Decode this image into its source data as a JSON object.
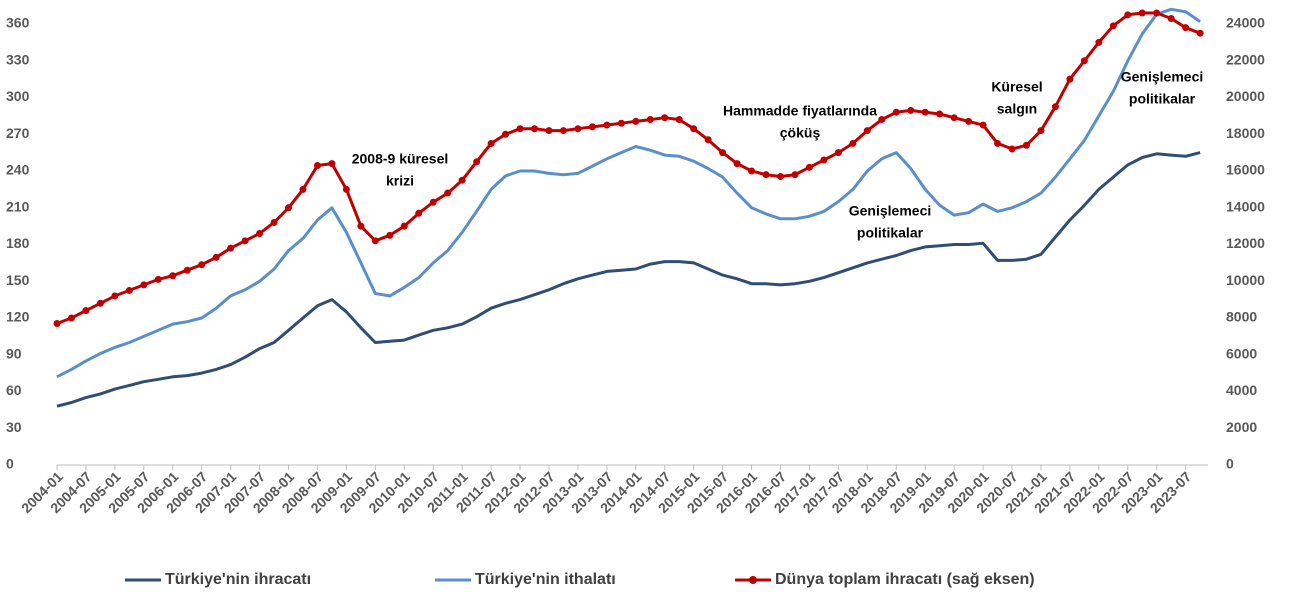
{
  "chart_data": {
    "type": "line",
    "categories": [
      "2004-01",
      null,
      "2004-07",
      null,
      "2005-01",
      null,
      "2005-07",
      null,
      "2006-01",
      null,
      "2006-07",
      null,
      "2007-01",
      null,
      "2007-07",
      null,
      "2008-01",
      null,
      "2008-07",
      null,
      "2009-01",
      null,
      "2009-07",
      null,
      "2010-01",
      null,
      "2010-07",
      null,
      "2011-01",
      null,
      "2011-07",
      null,
      "2012-01",
      null,
      "2012-07",
      null,
      "2013-01",
      null,
      "2013-07",
      null,
      "2014-01",
      null,
      "2014-07",
      null,
      "2015-01",
      null,
      "2015-07",
      null,
      "2016-01",
      null,
      "2016-07",
      null,
      "2017-01",
      null,
      "2017-07",
      null,
      "2018-01",
      null,
      "2018-07",
      null,
      "2019-01",
      null,
      "2019-07",
      null,
      "2020-01",
      null,
      "2020-07",
      null,
      "2021-01",
      null,
      "2021-07",
      null,
      "2022-01",
      null,
      "2022-07",
      null,
      "2023-01",
      null,
      "2023-07",
      null
    ],
    "series": [
      {
        "name": "Türkiye'nin ihracatı",
        "color": "#2e4e73",
        "values": [
          48,
          51,
          55,
          58,
          62,
          65,
          68,
          70,
          72,
          73,
          75,
          78,
          82,
          88,
          95,
          100,
          110,
          120,
          130,
          135,
          125,
          112,
          100,
          101,
          102,
          106,
          110,
          112,
          115,
          121,
          128,
          132,
          135,
          139,
          143,
          148,
          152,
          155,
          158,
          159,
          160,
          164,
          166,
          166,
          165,
          160,
          155,
          152,
          148,
          148,
          147,
          148,
          150,
          153,
          157,
          161,
          165,
          168,
          171,
          175,
          178,
          179,
          180,
          180,
          181,
          167,
          167,
          168,
          172,
          186,
          200,
          212,
          225,
          235,
          245,
          251,
          254,
          253,
          252,
          255
        ]
      },
      {
        "name": "Türkiye'nin ithalatı",
        "color": "#5b8fcc",
        "values": [
          72,
          78,
          85,
          91,
          96,
          100,
          105,
          110,
          115,
          117,
          120,
          128,
          138,
          143,
          150,
          160,
          175,
          185,
          200,
          210,
          190,
          165,
          140,
          138,
          145,
          153,
          165,
          175,
          190,
          207,
          225,
          236,
          240,
          240,
          238,
          237,
          238,
          244,
          250,
          255,
          260,
          257,
          253,
          252,
          248,
          242,
          235,
          222,
          210,
          205,
          201,
          201,
          203,
          207,
          215,
          225,
          240,
          250,
          255,
          242,
          225,
          212,
          204,
          206,
          213,
          207,
          210,
          215,
          222,
          235,
          250,
          265,
          285,
          305,
          330,
          352,
          368,
          372,
          370,
          362
        ]
      },
      {
        "name": "Dünya toplam ihracatı (sağ eksen)",
        "color": "#c00000",
        "axis": "y2",
        "marker": true,
        "values": [
          7700,
          8000,
          8400,
          8800,
          9200,
          9500,
          9800,
          10100,
          10300,
          10600,
          10900,
          11300,
          11800,
          12200,
          12600,
          13200,
          14000,
          15000,
          16300,
          16400,
          15000,
          13000,
          12200,
          12500,
          13000,
          13700,
          14300,
          14800,
          15500,
          16500,
          17500,
          18000,
          18300,
          18300,
          18200,
          18200,
          18300,
          18400,
          18500,
          18600,
          18700,
          18800,
          18900,
          18800,
          18300,
          17700,
          17000,
          16400,
          16000,
          15800,
          15700,
          15800,
          16200,
          16600,
          17000,
          17500,
          18200,
          18800,
          19200,
          19300,
          19200,
          19100,
          18900,
          18700,
          18500,
          17500,
          17200,
          17400,
          18200,
          19500,
          21000,
          22000,
          23000,
          23900,
          24500,
          24600,
          24600,
          24300,
          23800,
          23500
        ]
      }
    ],
    "ylim": [
      0,
      360
    ],
    "yticks": [
      0,
      30,
      60,
      90,
      120,
      150,
      180,
      210,
      240,
      270,
      300,
      330,
      360
    ],
    "y2lim": [
      0,
      24000
    ],
    "y2ticks": [
      0,
      2000,
      4000,
      6000,
      8000,
      10000,
      12000,
      14000,
      16000,
      18000,
      20000,
      22000,
      24000
    ],
    "grid": false,
    "legend": "bottom",
    "annotations": [
      {
        "lines": [
          "2008-9 küresel",
          "krizi"
        ]
      },
      {
        "lines": [
          "Hammadde fiyatlarında",
          "çöküş"
        ]
      },
      {
        "lines": [
          "Genişlemeci",
          "politikalar"
        ]
      },
      {
        "lines": [
          "Küresel",
          "salgın"
        ]
      },
      {
        "lines": [
          "Genişlemeci",
          "politikalar"
        ]
      }
    ]
  }
}
